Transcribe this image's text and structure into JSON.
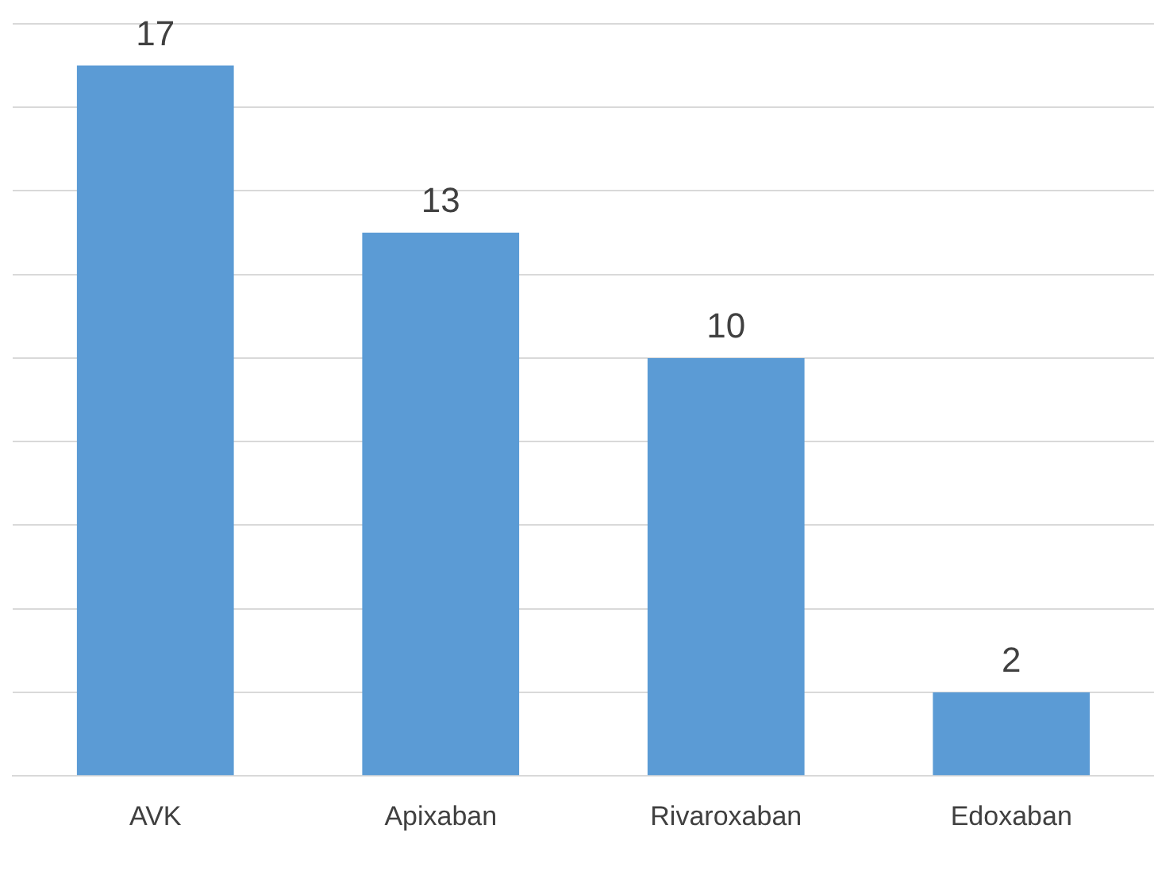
{
  "chart_data": {
    "type": "bar",
    "categories": [
      "AVK",
      "Apixaban",
      "Rivaroxaban",
      "Edoxaban"
    ],
    "values": [
      17,
      13,
      10,
      2
    ],
    "color": "#5b9bd5",
    "ylim": [
      0,
      18
    ],
    "yticks": [
      {
        "value": 0,
        "label": null
      },
      {
        "value": 2,
        "label": null
      },
      {
        "value": 4,
        "label": null
      },
      {
        "value": 6,
        "label": null
      },
      {
        "value": 8,
        "label": null
      },
      {
        "value": 10,
        "label": null
      },
      {
        "value": 12,
        "label": null
      },
      {
        "value": 14,
        "label": null
      },
      {
        "value": 16,
        "label": null
      },
      {
        "value": 18,
        "label": null
      }
    ],
    "grid": "y",
    "data_labels": true,
    "legend": false
  }
}
